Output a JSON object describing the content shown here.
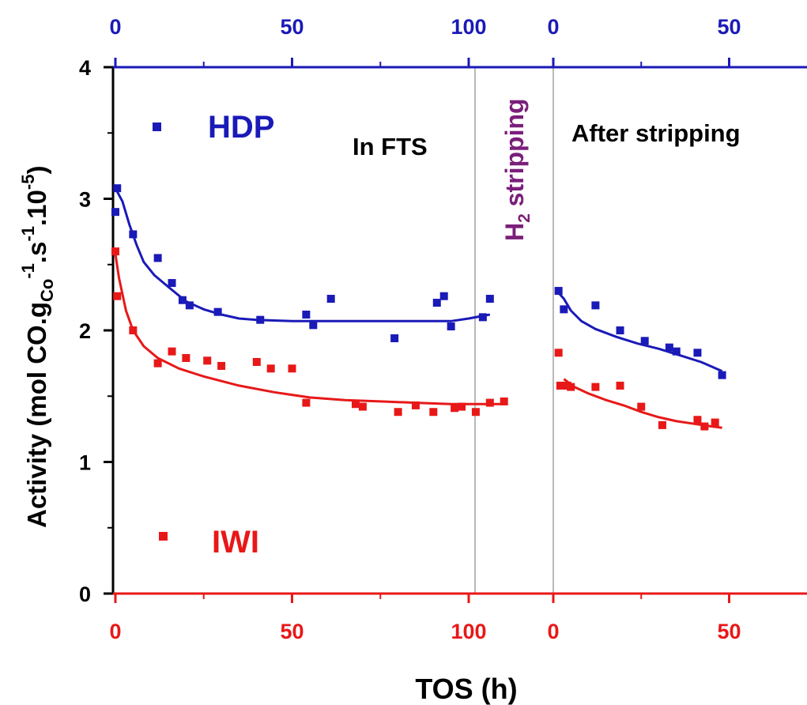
{
  "chart_data": {
    "type": "scatter",
    "title": "",
    "xlabel": "TOS (h)",
    "ylabel_parts": [
      "Activity (mol CO.g",
      "Co",
      "-1",
      ".s",
      "-1",
      ".10",
      "-5",
      ")"
    ],
    "ylim": [
      0,
      4
    ],
    "yticks": [
      0,
      1,
      2,
      3,
      4
    ],
    "colors": {
      "hdp": "#1a1ab8",
      "iwi": "#e81818",
      "axis": "#000000",
      "stripping": "#7a1f7a",
      "divider": "#888888"
    },
    "segments": [
      {
        "name": "In FTS",
        "xlim": [
          0,
          110
        ],
        "ticks": [
          0,
          50,
          100
        ]
      },
      {
        "name": "H2 stripping"
      },
      {
        "name": "After stripping",
        "xlim": [
          0,
          70
        ],
        "ticks": [
          0,
          50
        ]
      }
    ],
    "annotations": {
      "in_fts": "In FTS",
      "stripping_pre": "H",
      "stripping_sub": "2",
      "stripping_post": " stripping",
      "after": "After stripping"
    },
    "series": [
      {
        "name": "HDP",
        "color": "#1a1ab8",
        "fts_points": [
          [
            0,
            2.9
          ],
          [
            0.5,
            3.08
          ],
          [
            5,
            2.73
          ],
          [
            12,
            2.55
          ],
          [
            16,
            2.36
          ],
          [
            19,
            2.23
          ],
          [
            21,
            2.19
          ],
          [
            29,
            2.14
          ],
          [
            41,
            2.08
          ],
          [
            54,
            2.12
          ],
          [
            56,
            2.04
          ],
          [
            61,
            2.24
          ],
          [
            79,
            1.94
          ],
          [
            91,
            2.21
          ],
          [
            93,
            2.26
          ],
          [
            95,
            2.03
          ],
          [
            104,
            2.1
          ],
          [
            106,
            2.24
          ]
        ],
        "fts_curve": [
          [
            0,
            3.08
          ],
          [
            2,
            2.98
          ],
          [
            4,
            2.8
          ],
          [
            6,
            2.65
          ],
          [
            8,
            2.52
          ],
          [
            11,
            2.42
          ],
          [
            15,
            2.33
          ],
          [
            20,
            2.22
          ],
          [
            25,
            2.16
          ],
          [
            30,
            2.12
          ],
          [
            35,
            2.09
          ],
          [
            40,
            2.08
          ],
          [
            50,
            2.07
          ],
          [
            60,
            2.07
          ],
          [
            70,
            2.07
          ],
          [
            80,
            2.07
          ],
          [
            90,
            2.07
          ],
          [
            95,
            2.07
          ],
          [
            100,
            2.09
          ],
          [
            106,
            2.12
          ]
        ],
        "after_points": [
          [
            1.5,
            2.3
          ],
          [
            3,
            2.16
          ],
          [
            12,
            2.19
          ],
          [
            19,
            2.0
          ],
          [
            26,
            1.92
          ],
          [
            33,
            1.87
          ],
          [
            35,
            1.84
          ],
          [
            41,
            1.83
          ],
          [
            48,
            1.66
          ]
        ],
        "after_curve": [
          [
            1,
            2.3
          ],
          [
            3,
            2.24
          ],
          [
            5,
            2.15
          ],
          [
            8,
            2.07
          ],
          [
            12,
            2.01
          ],
          [
            18,
            1.95
          ],
          [
            24,
            1.9
          ],
          [
            30,
            1.86
          ],
          [
            36,
            1.81
          ],
          [
            42,
            1.76
          ],
          [
            48,
            1.69
          ]
        ]
      },
      {
        "name": "IWI",
        "color": "#e81818",
        "fts_points": [
          [
            0,
            2.6
          ],
          [
            0.5,
            2.26
          ],
          [
            5,
            2.0
          ],
          [
            12,
            1.75
          ],
          [
            16,
            1.84
          ],
          [
            20,
            1.79
          ],
          [
            26,
            1.77
          ],
          [
            30,
            1.73
          ],
          [
            40,
            1.76
          ],
          [
            44,
            1.71
          ],
          [
            50,
            1.71
          ],
          [
            54,
            1.45
          ],
          [
            68,
            1.44
          ],
          [
            70,
            1.42
          ],
          [
            80,
            1.38
          ],
          [
            85,
            1.43
          ],
          [
            90,
            1.38
          ],
          [
            96,
            1.41
          ],
          [
            98,
            1.42
          ],
          [
            102,
            1.38
          ],
          [
            106,
            1.45
          ],
          [
            110,
            1.46
          ]
        ],
        "fts_curve": [
          [
            0,
            2.58
          ],
          [
            1,
            2.4
          ],
          [
            3,
            2.15
          ],
          [
            5,
            2.0
          ],
          [
            8,
            1.88
          ],
          [
            12,
            1.79
          ],
          [
            18,
            1.71
          ],
          [
            25,
            1.65
          ],
          [
            35,
            1.58
          ],
          [
            45,
            1.53
          ],
          [
            55,
            1.49
          ],
          [
            65,
            1.47
          ],
          [
            75,
            1.46
          ],
          [
            85,
            1.45
          ],
          [
            95,
            1.44
          ],
          [
            105,
            1.44
          ],
          [
            110,
            1.44
          ]
        ],
        "after_points": [
          [
            1.5,
            1.83
          ],
          [
            2,
            1.58
          ],
          [
            4,
            1.58
          ],
          [
            5,
            1.57
          ],
          [
            12,
            1.57
          ],
          [
            19,
            1.58
          ],
          [
            25,
            1.42
          ],
          [
            31,
            1.28
          ],
          [
            41,
            1.32
          ],
          [
            43,
            1.27
          ],
          [
            46,
            1.3
          ]
        ],
        "after_curve": [
          [
            3,
            1.63
          ],
          [
            6,
            1.57
          ],
          [
            10,
            1.52
          ],
          [
            15,
            1.47
          ],
          [
            20,
            1.43
          ],
          [
            25,
            1.38
          ],
          [
            30,
            1.34
          ],
          [
            35,
            1.31
          ],
          [
            40,
            1.29
          ],
          [
            45,
            1.27
          ],
          [
            48,
            1.26
          ]
        ]
      }
    ],
    "legend": {
      "position": "inside-left",
      "entries": [
        "HDP",
        "IWI"
      ]
    }
  }
}
